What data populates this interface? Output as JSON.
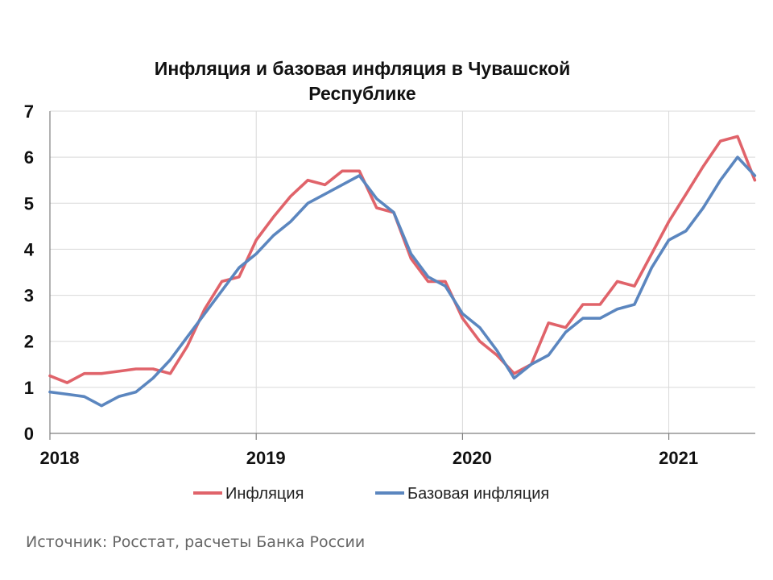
{
  "chart_data": {
    "type": "line",
    "title_lines": [
      "Инфляция и базовая инфляция в Чувашской",
      "Республике"
    ],
    "x_start": "2018-01",
    "x_labels": [
      "2018",
      "2019",
      "2020",
      "2021"
    ],
    "ylim": [
      0,
      7
    ],
    "yticks": [
      "0",
      "1",
      "2",
      "3",
      "4",
      "5",
      "6",
      "7"
    ],
    "grid": true,
    "legend_position": "bottom",
    "series": [
      {
        "name": "Инфляция",
        "color": "#e0636a",
        "values": [
          1.25,
          1.1,
          1.3,
          1.3,
          1.35,
          1.4,
          1.4,
          1.3,
          1.9,
          2.7,
          3.3,
          3.4,
          4.2,
          4.7,
          5.15,
          5.5,
          5.4,
          5.7,
          5.7,
          4.9,
          4.8,
          3.8,
          3.3,
          3.3,
          2.5,
          2.0,
          1.7,
          1.3,
          1.5,
          2.4,
          2.3,
          2.8,
          2.8,
          3.3,
          3.2,
          3.9,
          4.6,
          5.2,
          5.8,
          6.35,
          6.45,
          5.5
        ]
      },
      {
        "name": "Базовая инфляция",
        "color": "#5b86bf",
        "values": [
          0.9,
          0.85,
          0.8,
          0.6,
          0.8,
          0.9,
          1.2,
          1.6,
          2.1,
          2.6,
          3.1,
          3.6,
          3.9,
          4.3,
          4.6,
          5.0,
          5.2,
          5.4,
          5.6,
          5.1,
          4.8,
          3.9,
          3.4,
          3.2,
          2.6,
          2.3,
          1.8,
          1.2,
          1.5,
          1.7,
          2.2,
          2.5,
          2.5,
          2.7,
          2.8,
          3.6,
          4.2,
          4.4,
          4.9,
          5.5,
          6.0,
          5.6
        ]
      }
    ]
  },
  "source_text": "Источник: Росстат, расчеты Банка России"
}
